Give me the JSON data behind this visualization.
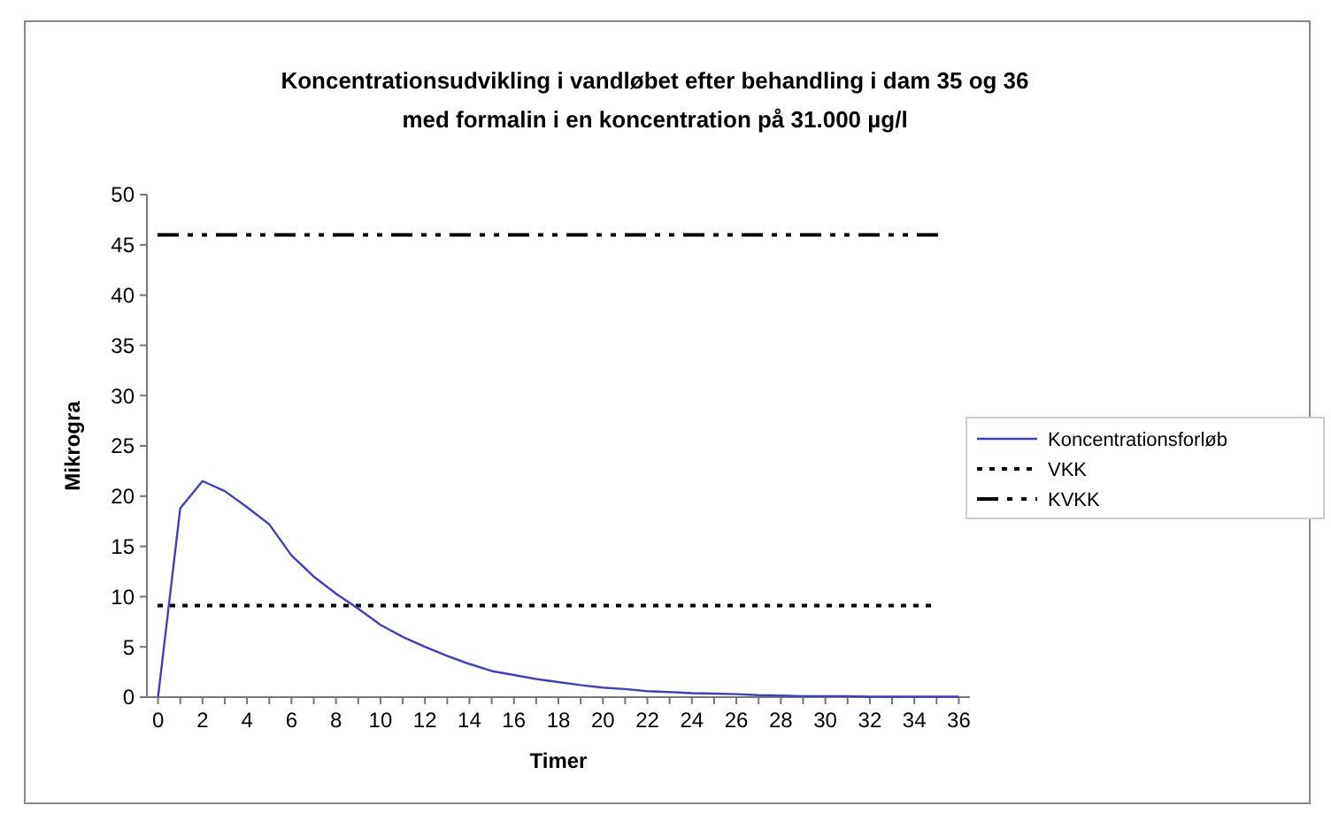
{
  "chart_data": {
    "type": "line",
    "title": "Koncentrationsudvikling i vandløbet efter behandling i dam 35 og 36\nmed formalin i en koncentration på 31.000 µg/l",
    "xlabel": "Timer",
    "ylabel": "Mikrogra",
    "x": [
      0,
      1,
      2,
      3,
      4,
      5,
      6,
      7,
      8,
      9,
      10,
      11,
      12,
      13,
      14,
      15,
      16,
      17,
      18,
      19,
      20,
      21,
      22,
      23,
      24,
      25,
      26,
      27,
      28,
      29,
      30,
      31,
      32,
      33,
      34,
      35,
      36
    ],
    "series": [
      {
        "name": "Koncentrationsforløb",
        "color": "#4040b8",
        "values": [
          0,
          18.8,
          21.5,
          20.5,
          18.9,
          17.2,
          14.1,
          12,
          10.3,
          8.8,
          7.2,
          6,
          5,
          4.1,
          3.3,
          2.6,
          2.2,
          1.8,
          1.5,
          1.2,
          0.95,
          0.8,
          0.6,
          0.5,
          0.4,
          0.35,
          0.3,
          0.2,
          0.15,
          0.1,
          0.1,
          0.1,
          0.05,
          0.05,
          0.05,
          0.05,
          0.05
        ]
      }
    ],
    "xlim": [
      -0.5,
      36.5
    ],
    "xticks": [
      0,
      {
        "value": 1,
        "label": null
      },
      2,
      {
        "value": 3,
        "label": null
      },
      4,
      {
        "value": 5,
        "label": null
      },
      6,
      {
        "value": 7,
        "label": null
      },
      8,
      {
        "value": 9,
        "label": null
      },
      10,
      {
        "value": 11,
        "label": null
      },
      12,
      {
        "value": 13,
        "label": null
      },
      14,
      {
        "value": 15,
        "label": null
      },
      16,
      {
        "value": 17,
        "label": null
      },
      18,
      {
        "value": 19,
        "label": null
      },
      20,
      {
        "value": 21,
        "label": null
      },
      22,
      {
        "value": 23,
        "label": null
      },
      24,
      {
        "value": 25,
        "label": null
      },
      26,
      {
        "value": 27,
        "label": null
      },
      28,
      {
        "value": 29,
        "label": null
      },
      30,
      {
        "value": 31,
        "label": null
      },
      32,
      {
        "value": 33,
        "label": null
      },
      34,
      {
        "value": 35,
        "label": null
      },
      36
    ],
    "ylim": [
      0,
      50
    ],
    "yticks": [
      0,
      5,
      10,
      15,
      20,
      25,
      30,
      35,
      40,
      45,
      50
    ],
    "ref_lines": [
      {
        "axis": "y",
        "value": 9.1,
        "label": "VKK",
        "color": "#000000",
        "line_style": "dotted"
      },
      {
        "axis": "y",
        "value": 46,
        "label": "KVKK",
        "color": "#000000",
        "line_style": "dashed"
      }
    ],
    "grid": false,
    "legend": "right",
    "marker": "none",
    "line_style": "solid"
  }
}
